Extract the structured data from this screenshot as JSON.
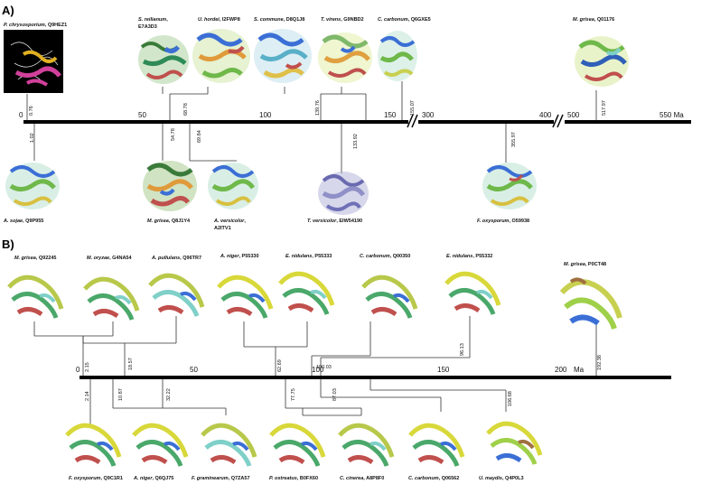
{
  "panelA": {
    "label": "A)",
    "ticks": [
      "0",
      "50",
      "100",
      "150",
      "300",
      "400",
      "500",
      "550 Ma"
    ],
    "nodes": [
      "0.76",
      "1.02",
      "54.78",
      "68.78",
      "69.84",
      "139.76",
      "133.92",
      "155.07",
      "355.97",
      "517.97"
    ],
    "proteins_top": [
      {
        "species": "P. chrysosporium",
        "id": "Q9HEZ1"
      },
      {
        "species": "S. reilianum",
        "id": "E7A3D3"
      },
      {
        "species": "U. hordei",
        "id": "I2FWP8"
      },
      {
        "species": "S. commune",
        "id": "D8Q1J8"
      },
      {
        "species": "T. virens",
        "id": "G9NBD2"
      },
      {
        "species": "C. carbonum",
        "id": "Q6GXE5"
      },
      {
        "species": "M. grisea",
        "id": "Q01176"
      }
    ],
    "proteins_bottom": [
      {
        "species": "A. sojae",
        "id": "Q9P955"
      },
      {
        "species": "M. grisea",
        "id": "Q8J1Y4"
      },
      {
        "species": "A. versicolor",
        "id": "A2ITV1"
      },
      {
        "species": "T. versicolor",
        "id": "EIW54190"
      },
      {
        "species": "F. oxysporum",
        "id": "O59938"
      }
    ]
  },
  "panelB": {
    "label": "B)",
    "ticks": [
      "0",
      "50",
      "100",
      "150",
      "200",
      "Ma"
    ],
    "nodes": [
      "2.15",
      "18.57",
      "62.69",
      "96.13",
      "192.38",
      "2.14",
      "10.87",
      "32.22",
      "77.75",
      "87.03",
      "106.68",
      "100.03"
    ],
    "proteins_top": [
      {
        "species": "M. grisea",
        "id": "Q92245"
      },
      {
        "species": "M. oryzae",
        "id": "G4NA54"
      },
      {
        "species": "A. pullulans",
        "id": "Q96TR7"
      },
      {
        "species": "A. niger",
        "id": "P55330"
      },
      {
        "species": "E. nidulans",
        "id": "P55333"
      },
      {
        "species": "C. carbonum",
        "id": "Q00350"
      },
      {
        "species": "E. nidulans",
        "id": "P55332"
      },
      {
        "species": "M. grisea",
        "id": "P0CT48"
      }
    ],
    "proteins_bottom": [
      {
        "species": "F. oxysporum",
        "id": "Q9C1R1"
      },
      {
        "species": "A. niger",
        "id": "Q6QJ75"
      },
      {
        "species": "F. graminearum",
        "id": "Q7ZA57"
      },
      {
        "species": "P. ostreatus",
        "id": "B0FX60"
      },
      {
        "species": "C. cinerea",
        "id": "A8P8F0"
      },
      {
        "species": "C. carbonum",
        "id": "Q06562"
      },
      {
        "species": "U. maydis",
        "id": "Q4P0L3"
      }
    ]
  },
  "colors": {
    "axis": "#000000",
    "branch": "#333333",
    "blue": "#3b6fd6",
    "green": "#6fb84a",
    "yellow": "#d8d83a",
    "red": "#c0504d",
    "cyan": "#7fd0c8",
    "magenta": "#d0409a"
  }
}
